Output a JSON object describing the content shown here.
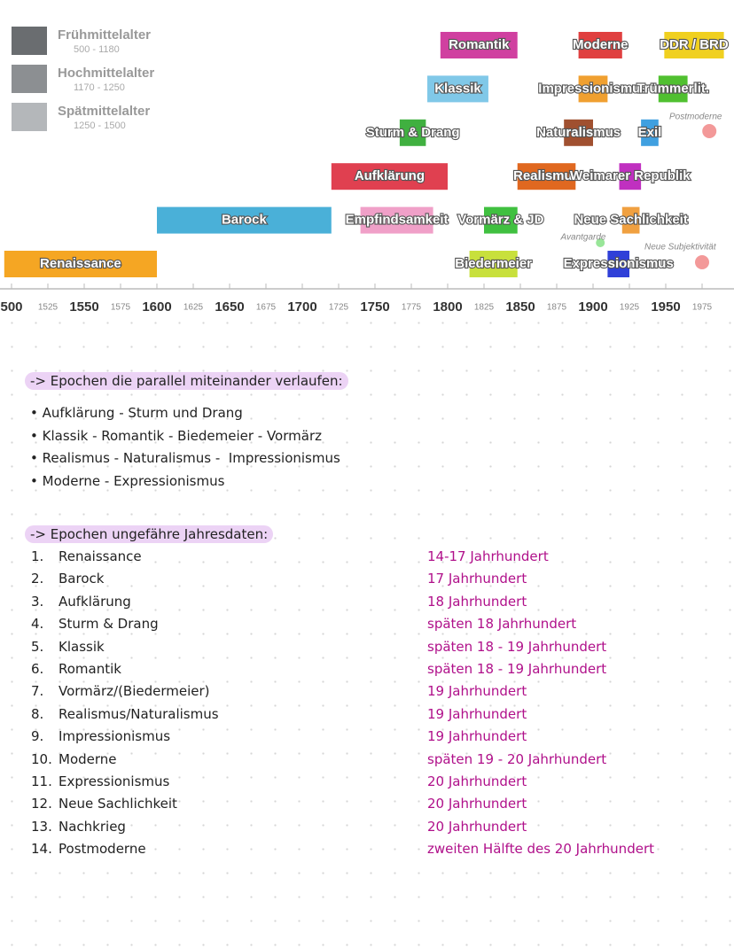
{
  "timeline": {
    "legend": [
      {
        "name": "Frühmittelalter",
        "range": "500 - 1180",
        "color": "#6a6d70"
      },
      {
        "name": "Hochmittelalter",
        "range": "1170 - 1250",
        "color": "#8c8f92"
      },
      {
        "name": "Spätmittelalter",
        "range": "1250 - 1500",
        "color": "#b4b7ba"
      }
    ],
    "ticks": [
      {
        "value": 1500,
        "label": "500"
      },
      1525,
      1550,
      1575,
      1600,
      1625,
      1650,
      1675,
      1700,
      1725,
      1750,
      1775,
      1800,
      1825,
      1850,
      1875,
      1900,
      1925,
      1950,
      1975
    ],
    "epochs": [
      {
        "label": "Renaissance",
        "start": 1495,
        "end": 1600,
        "color": "#f5a623"
      },
      {
        "label": "Biedermeier",
        "start": 1815,
        "end": 1848,
        "color": "#c8e03c"
      },
      {
        "label": "Expressionismus",
        "start": 1910,
        "end": 1925,
        "color": "#3040d8"
      },
      {
        "label": "Barock",
        "start": 1600,
        "end": 1720,
        "color": "#4ab0d8"
      },
      {
        "label": "Empfindsamkeit",
        "start": 1740,
        "end": 1790,
        "color": "#f0a0c8"
      },
      {
        "label": "Vormärz & JD",
        "start": 1825,
        "end": 1848,
        "color": "#40c040"
      },
      {
        "label": "Neue Sachlichkeit",
        "start": 1920,
        "end": 1932,
        "color": "#f0a040"
      },
      {
        "label": "Aufklärung",
        "start": 1720,
        "end": 1800,
        "color": "#e04050"
      },
      {
        "label": "Realismus",
        "start": 1848,
        "end": 1888,
        "color": "#e06820"
      },
      {
        "label": "Weimarer Republik",
        "start": 1918,
        "end": 1933,
        "color": "#c030c0"
      },
      {
        "label": "Sturm & Drang",
        "start": 1767,
        "end": 1785,
        "color": "#40b040"
      },
      {
        "label": "Naturalismus",
        "start": 1880,
        "end": 1900,
        "color": "#a05030"
      },
      {
        "label": "Exil",
        "start": 1933,
        "end": 1945,
        "color": "#40a0e0"
      },
      {
        "label": "Klassik",
        "start": 1786,
        "end": 1828,
        "color": "#80c8e8"
      },
      {
        "label": "Impressionismus",
        "start": 1890,
        "end": 1910,
        "color": "#f0a030"
      },
      {
        "label": "Trümmerlit.",
        "start": 1945,
        "end": 1965,
        "color": "#50c030"
      },
      {
        "label": "Romantik",
        "start": 1795,
        "end": 1848,
        "color": "#d040a0"
      },
      {
        "label": "Moderne",
        "start": 1890,
        "end": 1920,
        "color": "#e04040"
      },
      {
        "label": "DDR / BRD",
        "start": 1949,
        "end": 1990,
        "color": "#f0d020"
      }
    ],
    "points": [
      {
        "label": "Avantgarde",
        "year": 1905,
        "color": "#80e080"
      },
      {
        "label": "Postmoderne",
        "year": 1980,
        "color": "#f08080"
      },
      {
        "label": "Neue Subjektivität",
        "year": 1975,
        "color": "#f08080"
      }
    ]
  },
  "notes": {
    "parallel_heading": "-> Epochen die parallel miteinander verlaufen:",
    "parallel": [
      "Aufklärung - Sturm und Drang",
      "Klassik - Romantik - Biedemeier - Vormärz",
      "Realismus - Naturalismus -  Impressionismus",
      "Moderne - Expressionismus"
    ],
    "dates_heading": "-> Epochen ungefähre Jahresdaten:",
    "dates": [
      {
        "num": "1.",
        "name": "Renaissance",
        "date": "14-17 Jahrhundert"
      },
      {
        "num": "2.",
        "name": "Barock",
        "date": "17 Jahrhundert"
      },
      {
        "num": "3.",
        "name": "Aufklärung",
        "date": "18 Jahrhundert"
      },
      {
        "num": "4.",
        "name": "Sturm & Drang",
        "date": "späten 18 Jahrhundert"
      },
      {
        "num": "5.",
        "name": "Klassik",
        "date": "späten 18 - 19 Jahrhundert"
      },
      {
        "num": "6.",
        "name": "Romantik",
        "date": "späten 18 - 19 Jahrhundert"
      },
      {
        "num": "7.",
        "name": "Vormärz/(Biedermeier)",
        "date": "19 Jahrhundert"
      },
      {
        "num": "8.",
        "name": "Realismus/Naturalismus",
        "date": "19 Jahrhundert"
      },
      {
        "num": "9.",
        "name": "Impressionismus",
        "date": "19 Jahrhundert"
      },
      {
        "num": "10.",
        "name": "Moderne",
        "date": "späten 19 - 20 Jahrhundert"
      },
      {
        "num": "11.",
        "name": "Expressionismus",
        "date": "20 Jahrhundert"
      },
      {
        "num": "12.",
        "name": "Neue Sachlichkeit",
        "date": "20 Jahrhundert"
      },
      {
        "num": "13.",
        "name": "Nachkrieg",
        "date": "20 Jahrhundert"
      },
      {
        "num": "14.",
        "name": "Postmoderne",
        "date": "zweiten Hälfte des 20 Jahrhundert"
      }
    ]
  }
}
